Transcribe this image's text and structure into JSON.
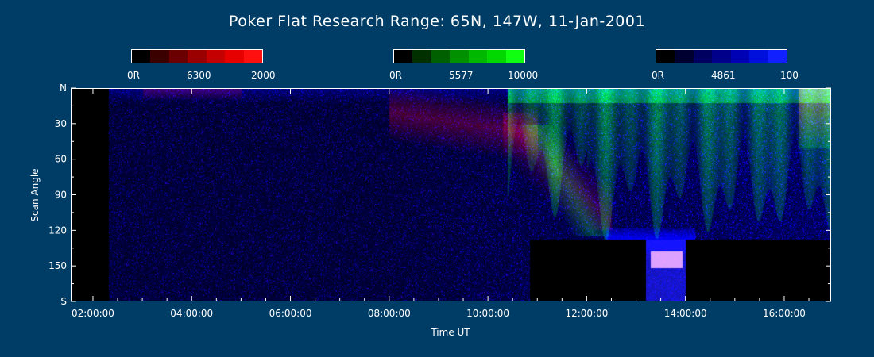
{
  "title": "Poker Flat Research Range: 65N, 147W, 11-Jan-2001",
  "colorbars": [
    {
      "left_label": "0R",
      "mid_label": "6300",
      "right_label": "2000",
      "colors": [
        "#000000",
        "#3a0000",
        "#6a0000",
        "#9a0000",
        "#c40000",
        "#e60000",
        "#ff1010"
      ]
    },
    {
      "left_label": "0R",
      "mid_label": "5577",
      "right_label": "10000",
      "colors": [
        "#000000",
        "#003000",
        "#006000",
        "#009000",
        "#00b800",
        "#00d800",
        "#10ff10"
      ]
    },
    {
      "left_label": "0R",
      "mid_label": "4861",
      "right_label": "100",
      "colors": [
        "#000000",
        "#000030",
        "#000060",
        "#00008a",
        "#0000b4",
        "#0010dc",
        "#1020ff"
      ]
    }
  ],
  "chart_data": {
    "type": "heatmap",
    "title": "Poker Flat Research Range: 65N, 147W, 11-Jan-2001",
    "xlabel": "Time UT",
    "ylabel": "Scan Angle",
    "xlim_hours": [
      1.55,
      16.95
    ],
    "ylim": [
      0,
      180
    ],
    "x_ticks": [
      {
        "value": 2,
        "label": "02:00:00"
      },
      {
        "value": 4,
        "label": "04:00:00"
      },
      {
        "value": 6,
        "label": "06:00:00"
      },
      {
        "value": 8,
        "label": "08:00:00"
      },
      {
        "value": 10,
        "label": "10:00:00"
      },
      {
        "value": 12,
        "label": "12:00:00"
      },
      {
        "value": 14,
        "label": "14:00:00"
      },
      {
        "value": 16,
        "label": "16:00:00"
      }
    ],
    "y_ticks": [
      {
        "value": 0,
        "label": "N"
      },
      {
        "value": 30,
        "label": "30"
      },
      {
        "value": 60,
        "label": "60"
      },
      {
        "value": 90,
        "label": "90"
      },
      {
        "value": 120,
        "label": "120"
      },
      {
        "value": 150,
        "label": "150"
      },
      {
        "value": 180,
        "label": "S"
      }
    ],
    "channels": [
      {
        "name": "6300",
        "color": "#ff0000",
        "max": 2000
      },
      {
        "name": "5577",
        "color": "#00ff00",
        "max": 10000
      },
      {
        "name": "4861",
        "color": "#0000ff",
        "max": 100
      }
    ],
    "no_data_intervals": [
      {
        "from_hour": 1.55,
        "to_hour": 2.3,
        "from_angle": 0,
        "to_angle": 180
      },
      {
        "from_hour": 10.85,
        "to_hour": 13.2,
        "from_angle": 128,
        "to_angle": 180
      },
      {
        "from_hour": 14.0,
        "to_hour": 16.95,
        "from_angle": 128,
        "to_angle": 180
      }
    ]
  }
}
